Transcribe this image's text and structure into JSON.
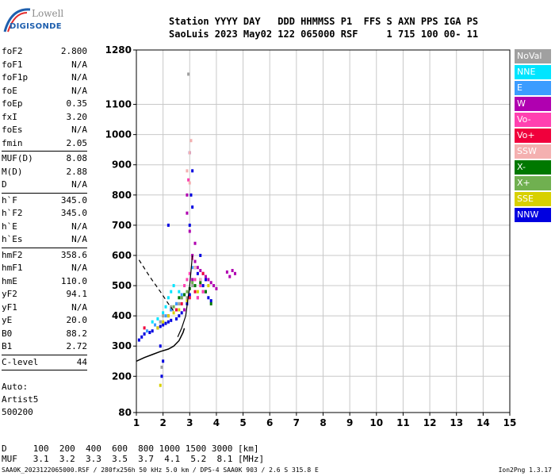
{
  "logo": {
    "line1": "Lowell",
    "line2": "DIGISONDE"
  },
  "header": {
    "line1": "Station YYYY DAY   DDD HHMMSS P1  FFS S AXN PPS IGA PS",
    "line2": "SaoLuis 2023 May02 122 065000 RSF     1 715 100 00- 11"
  },
  "params": [
    [
      {
        "k": "foF2",
        "v": "2.800"
      },
      {
        "k": "foF1",
        "v": "N/A"
      },
      {
        "k": "foF1p",
        "v": "N/A"
      },
      {
        "k": "foE",
        "v": "N/A"
      },
      {
        "k": "foEp",
        "v": "0.35"
      },
      {
        "k": "fxI",
        "v": "3.20"
      },
      {
        "k": "foEs",
        "v": "N/A"
      },
      {
        "k": "fmin",
        "v": "2.05"
      }
    ],
    [
      {
        "k": "MUF(D)",
        "v": "8.08"
      },
      {
        "k": "M(D)",
        "v": "2.88"
      },
      {
        "k": "D",
        "v": "N/A"
      }
    ],
    [
      {
        "k": "h`F",
        "v": "345.0"
      },
      {
        "k": "h`F2",
        "v": "345.0"
      },
      {
        "k": "h`E",
        "v": "N/A"
      },
      {
        "k": "h`Es",
        "v": "N/A"
      }
    ],
    [
      {
        "k": "hmF2",
        "v": "358.6"
      },
      {
        "k": "hmF1",
        "v": "N/A"
      },
      {
        "k": "hmE",
        "v": "110.0"
      },
      {
        "k": "yF2",
        "v": "94.1"
      },
      {
        "k": "yF1",
        "v": "N/A"
      },
      {
        "k": "yE",
        "v": "20.0"
      },
      {
        "k": "B0",
        "v": "88.2"
      },
      {
        "k": "B1",
        "v": "2.72"
      }
    ],
    [
      {
        "k": "C-level",
        "v": "44"
      }
    ]
  ],
  "auto": {
    "line1": "Auto:",
    "line2": "Artist5",
    "line3": "500200"
  },
  "legend": [
    {
      "label": "NoVal",
      "color": "#a0a0a0"
    },
    {
      "label": "NNE",
      "color": "#00e5ff"
    },
    {
      "label": "E",
      "color": "#3c9cff"
    },
    {
      "label": "W",
      "color": "#b000b0"
    },
    {
      "label": "Vo-",
      "color": "#ff40b0"
    },
    {
      "label": "Vo+",
      "color": "#f0003c"
    },
    {
      "label": "SSW",
      "color": "#f4b0b0"
    },
    {
      "label": "X-",
      "color": "#007800"
    },
    {
      "label": "X+",
      "color": "#70b050"
    },
    {
      "label": "SSE",
      "color": "#d8d000"
    },
    {
      "label": "NNW",
      "color": "#0000e0"
    }
  ],
  "dmuf": {
    "line1": "D     100  200  400  600  800 1000 1500 3000 [km]",
    "line2": "MUF   3.1  3.2  3.3  3.5  3.7  4.1  5.2  8.1 [MHz]"
  },
  "footer": {
    "left": "SAA0K_2023122065000.RSF / 280fx256h 50 kHz 5.0 km / DPS-4 SAA0K 903 / 2.6 S 315.8 E",
    "right": "Ion2Png 1.3.17"
  },
  "chart_data": {
    "type": "scatter",
    "title": "",
    "xlabel": "",
    "ylabel": "",
    "xlim": [
      1,
      15
    ],
    "ylim": [
      80,
      1280
    ],
    "xticks": [
      1,
      2,
      3,
      4,
      5,
      6,
      7,
      8,
      9,
      10,
      11,
      12,
      13,
      14,
      15
    ],
    "yticks": [
      80,
      200,
      300,
      400,
      500,
      600,
      700,
      800,
      900,
      1000,
      1100,
      1280
    ],
    "grid": true,
    "profile": {
      "x": [
        1.0,
        1.3,
        1.6,
        1.9,
        2.2,
        2.4,
        2.6,
        2.75,
        2.8
      ],
      "y": [
        250,
        262,
        272,
        282,
        290,
        300,
        318,
        345,
        359
      ]
    },
    "dashed": {
      "x": [
        1.1,
        1.5,
        1.9,
        2.2,
        2.45
      ],
      "y": [
        585,
        530,
        480,
        440,
        410
      ]
    },
    "fx_trace": {
      "x": [
        2.55,
        2.7,
        2.85,
        3.0,
        3.1
      ],
      "y": [
        330,
        360,
        400,
        500,
        600
      ]
    },
    "series": [
      {
        "color": "#0000e0",
        "x": [
          1.1,
          1.2,
          1.3,
          1.5,
          1.6,
          1.8,
          1.9,
          2.0,
          2.1,
          2.2,
          2.3,
          2.5,
          2.6,
          2.7,
          2.8,
          2.9,
          3.0,
          3.0,
          3.05,
          3.1,
          3.2,
          3.3,
          3.4,
          3.5,
          3.6,
          3.7,
          3.8,
          2.3,
          2.2,
          3.4,
          3.6,
          3.0,
          3.1,
          1.9,
          2.0,
          1.95
        ],
        "y": [
          320,
          330,
          340,
          345,
          350,
          360,
          365,
          370,
          375,
          380,
          385,
          390,
          400,
          410,
          420,
          440,
          470,
          700,
          800,
          880,
          560,
          540,
          520,
          500,
          480,
          460,
          450,
          420,
          700,
          600,
          520,
          940,
          760,
          300,
          250,
          200
        ]
      },
      {
        "color": "#b000b0",
        "x": [
          3.1,
          3.2,
          3.3,
          3.4,
          3.5,
          3.6,
          3.7,
          3.8,
          3.9,
          4.0,
          3.3,
          3.5,
          3.2,
          2.9,
          4.4,
          4.5,
          4.6,
          4.7,
          2.8,
          2.9,
          2.5,
          2.7,
          3.0,
          3.1
        ],
        "y": [
          600,
          580,
          560,
          550,
          540,
          530,
          520,
          510,
          500,
          490,
          460,
          480,
          640,
          740,
          545,
          530,
          550,
          540,
          420,
          800,
          440,
          460,
          680,
          520
        ]
      },
      {
        "color": "#ff40b0",
        "x": [
          2.8,
          2.9,
          3.0,
          3.2,
          3.4,
          3.3,
          3.5,
          2.95,
          3.1
        ],
        "y": [
          500,
          520,
          540,
          520,
          500,
          460,
          480,
          850,
          590
        ]
      },
      {
        "color": "#f0003c",
        "x": [
          2.2,
          2.5,
          2.7,
          3.0,
          3.2,
          3.5,
          1.3
        ],
        "y": [
          400,
          420,
          440,
          460,
          480,
          540,
          360
        ]
      },
      {
        "color": "#00e5ff",
        "x": [
          1.6,
          1.8,
          2.0,
          2.1,
          2.2,
          2.3,
          2.4,
          2.6,
          2.8
        ],
        "y": [
          380,
          390,
          410,
          430,
          460,
          480,
          500,
          480,
          470
        ]
      },
      {
        "color": "#3c9cff",
        "x": [
          1.4,
          1.7,
          1.9,
          2.1,
          2.3,
          2.5,
          2.7,
          3.1
        ],
        "y": [
          350,
          370,
          380,
          400,
          420,
          440,
          470,
          560
        ]
      },
      {
        "color": "#007800",
        "x": [
          2.6,
          2.8,
          3.0,
          3.2,
          3.4,
          3.6,
          3.8
        ],
        "y": [
          460,
          470,
          490,
          500,
          510,
          480,
          440
        ]
      },
      {
        "color": "#70b050",
        "x": [
          2.4,
          2.6,
          2.7,
          2.9,
          3.1
        ],
        "y": [
          430,
          440,
          460,
          480,
          510
        ]
      },
      {
        "color": "#d8d000",
        "x": [
          1.8,
          2.0,
          2.2,
          2.4,
          2.6,
          2.9,
          3.3,
          3.7,
          1.9
        ],
        "y": [
          360,
          380,
          400,
          410,
          420,
          450,
          480,
          500,
          170
        ]
      },
      {
        "color": "#f4b0b0",
        "x": [
          2.9,
          3.0,
          3.05,
          3.0,
          3.2,
          3.4
        ],
        "y": [
          880,
          940,
          980,
          840,
          560,
          520
        ]
      },
      {
        "color": "#a0a0a0",
        "x": [
          1.9,
          2.0,
          2.3,
          2.6,
          2.9,
          3.1,
          1.95,
          2.95
        ],
        "y": [
          380,
          400,
          430,
          440,
          460,
          500,
          230,
          1200
        ]
      }
    ]
  }
}
